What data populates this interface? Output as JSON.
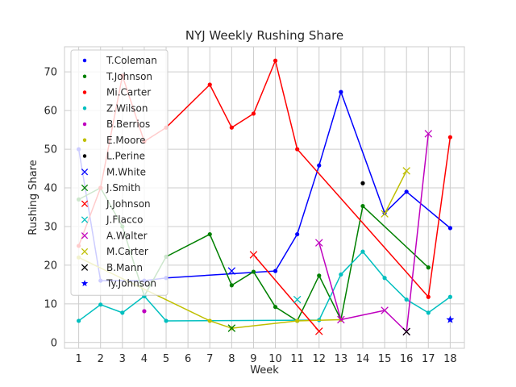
{
  "chart_data": {
    "type": "line",
    "title": "NYJ Weekly Rushing Share",
    "xlabel": "Week",
    "ylabel": "Rushing Share",
    "xlim": [
      0.35,
      18.65
    ],
    "ylim": [
      -1.5,
      76.5
    ],
    "x_ticks": [
      1,
      2,
      3,
      4,
      5,
      6,
      7,
      8,
      9,
      10,
      11,
      12,
      13,
      14,
      15,
      16,
      17,
      18
    ],
    "y_ticks": [
      0,
      10,
      20,
      30,
      40,
      50,
      60,
      70
    ],
    "grid": true,
    "legend_position": "upper-left",
    "series": [
      {
        "name": "T.Coleman",
        "color": "#0000ff",
        "marker": "dot",
        "x": [
          1,
          2,
          4,
          5,
          10,
          11,
          12,
          13,
          15,
          16,
          18
        ],
        "y": [
          50.0,
          16.0,
          16.0,
          16.7,
          18.5,
          28.0,
          45.8,
          64.8,
          33.5,
          39.0,
          29.6
        ]
      },
      {
        "name": "T.Johnson",
        "color": "#008000",
        "marker": "dot",
        "x": [
          1,
          2,
          3,
          4,
          5,
          7,
          8,
          9,
          10,
          11,
          12,
          13,
          14,
          17
        ],
        "y": [
          37.0,
          40.0,
          30.0,
          12.0,
          22.2,
          28.0,
          14.8,
          18.3,
          9.2,
          5.6,
          17.3,
          5.9,
          35.3,
          19.4
        ]
      },
      {
        "name": "Mi.Carter",
        "color": "#ff0000",
        "marker": "dot",
        "x": [
          1,
          2,
          3,
          4,
          5,
          7,
          8,
          9,
          10,
          11,
          17,
          18
        ],
        "y": [
          25.0,
          40.0,
          69.0,
          52.0,
          55.6,
          66.7,
          55.6,
          59.2,
          72.9,
          50.0,
          11.8,
          53.1
        ]
      },
      {
        "name": "Z.Wilson",
        "color": "#00bfbf",
        "marker": "dot",
        "x": [
          1,
          2,
          3,
          4,
          5,
          12,
          13,
          14,
          15,
          16,
          17,
          18
        ],
        "y": [
          5.6,
          9.8,
          7.7,
          12.0,
          5.6,
          5.8,
          17.6,
          23.5,
          16.7,
          11.1,
          7.7,
          11.8
        ]
      },
      {
        "name": "B.Berrios",
        "color": "#bf00bf",
        "marker": "dot",
        "x": [
          4
        ],
        "y": [
          8.1
        ]
      },
      {
        "name": "E.Moore",
        "color": "#bfbf00",
        "marker": "dot",
        "x": [
          1,
          7,
          8,
          11,
          13
        ],
        "y": [
          22.0,
          5.6,
          3.7,
          5.6,
          5.9
        ]
      },
      {
        "name": "L.Perine",
        "color": "#000000",
        "marker": "dot",
        "x": [
          14
        ],
        "y": [
          41.2
        ]
      },
      {
        "name": "M.White",
        "color": "#0000ff",
        "marker": "x",
        "x": [
          8
        ],
        "y": [
          18.5
        ]
      },
      {
        "name": "J.Smith",
        "color": "#008000",
        "marker": "x",
        "x": [
          8
        ],
        "y": [
          3.7
        ]
      },
      {
        "name": "J.Johnson",
        "color": "#ff0000",
        "marker": "x",
        "x": [
          9,
          12
        ],
        "y": [
          22.7,
          2.9
        ]
      },
      {
        "name": "J.Flacco",
        "color": "#00bfbf",
        "marker": "x",
        "x": [
          11
        ],
        "y": [
          11.1
        ]
      },
      {
        "name": "A.Walter",
        "color": "#bf00bf",
        "marker": "x",
        "x": [
          12,
          13,
          15,
          16,
          17
        ],
        "y": [
          25.8,
          5.9,
          8.3,
          2.8,
          54.0
        ]
      },
      {
        "name": "M.Carter",
        "color": "#bfbf00",
        "marker": "x",
        "x": [
          15,
          16
        ],
        "y": [
          33.3,
          44.4
        ]
      },
      {
        "name": "B.Mann",
        "color": "#000000",
        "marker": "x",
        "x": [
          16
        ],
        "y": [
          2.8
        ]
      },
      {
        "name": "Ty.Johnson",
        "color": "#0000ff",
        "marker": "star",
        "x": [
          18
        ],
        "y": [
          5.9
        ]
      }
    ]
  }
}
